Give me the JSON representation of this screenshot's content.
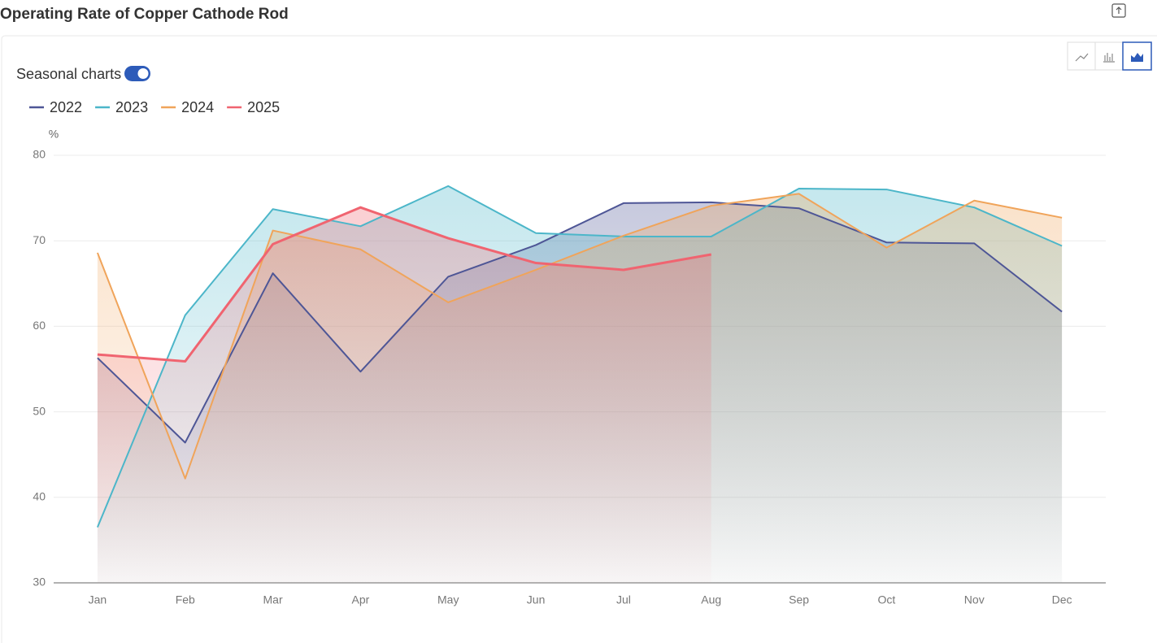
{
  "chart_data": {
    "type": "area",
    "title": "Operating Rate of Copper Cathode Rod",
    "toggle_label": "Seasonal charts",
    "y_unit": "%",
    "categories": [
      "Jan",
      "Feb",
      "Mar",
      "Apr",
      "May",
      "Jun",
      "Jul",
      "Aug",
      "Sep",
      "Oct",
      "Nov",
      "Dec"
    ],
    "series": [
      {
        "name": "2022",
        "color": "#4e5696",
        "values": [
          56.3,
          46.4,
          66.2,
          54.7,
          65.8,
          69.5,
          74.4,
          74.5,
          73.8,
          69.8,
          69.7,
          61.7
        ]
      },
      {
        "name": "2023",
        "color": "#4cb6c9",
        "values": [
          36.5,
          61.3,
          73.7,
          71.7,
          76.4,
          70.9,
          70.5,
          70.5,
          76.1,
          76.0,
          73.9,
          69.4
        ]
      },
      {
        "name": "2024",
        "color": "#f0a45a",
        "values": [
          68.6,
          42.2,
          71.2,
          69.0,
          62.8,
          66.6,
          70.6,
          74.1,
          75.5,
          69.2,
          74.7,
          72.7
        ]
      },
      {
        "name": "2025",
        "color": "#f06470",
        "values": [
          56.7,
          55.9,
          69.6,
          73.9,
          70.3,
          67.4,
          66.6,
          68.4,
          null,
          null,
          null,
          null
        ]
      }
    ],
    "ylim": [
      30,
      80
    ],
    "yticks": [
      30,
      40,
      50,
      60,
      70,
      80
    ],
    "grid": true
  }
}
